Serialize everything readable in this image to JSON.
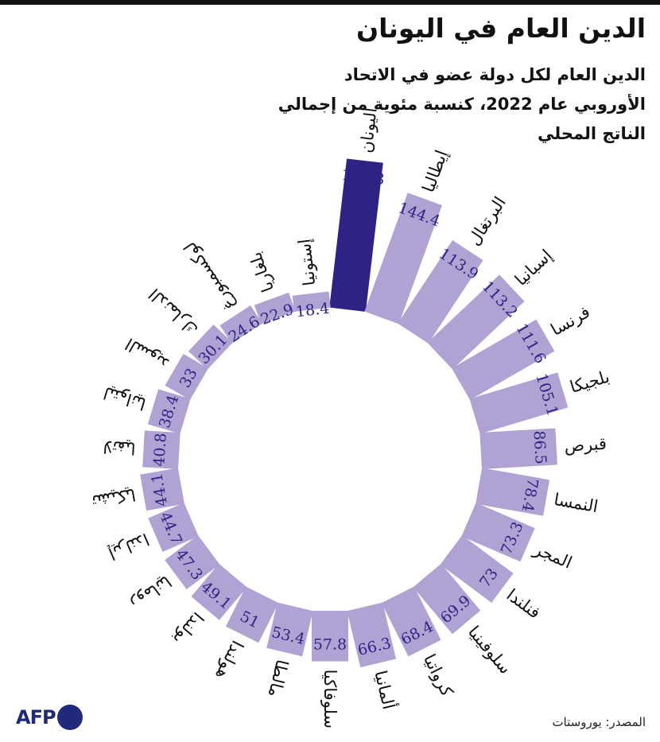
{
  "header": {
    "title": "الدين العام في اليونان",
    "subtitle": "الدين العام لكل دولة عضو في الاتحاد الأوروبي عام 2022، كنسبة مئوية من إجمالي الناتج المحلي"
  },
  "footer": {
    "source": "المصدر: يوروستات",
    "logo_text": "AFP"
  },
  "colors": {
    "highlight": "#2e2384",
    "bar": "#b0a2d2",
    "value_text": "#2e2384",
    "label_text": "#111111"
  },
  "chart_data": {
    "type": "bar",
    "layout": "radial",
    "highlight": "اليونان",
    "categories": [
      "اليونان",
      "إيطاليا",
      "البرتغال",
      "إسبانيا",
      "فرنسا",
      "بلجيكا",
      "قبرص",
      "النمسا",
      "المجر",
      "فنلندا",
      "سلوفينيا",
      "كرواتيا",
      "ألمانيا",
      "سلوفاكيا",
      "مالطا",
      "هولندا",
      "بولندا",
      "رومانيا",
      "إيرلندا",
      "تشيكيا",
      "لاتفيا",
      "ليتوانيا",
      "السويد",
      "الدنمارك",
      "لوكسمبورغ",
      "بلغاريا",
      "إستونيا"
    ],
    "values": [
      171.3,
      144.4,
      113.9,
      113.2,
      111.6,
      105.1,
      86.5,
      78.4,
      73.3,
      73,
      69.9,
      68.4,
      66.3,
      57.8,
      53.4,
      51,
      49.1,
      47.3,
      44.7,
      44.1,
      40.8,
      38.4,
      33,
      30.1,
      24.6,
      22.9,
      18.4
    ],
    "value_labels": [
      "171.3",
      "144.4",
      "113.9",
      "113.2",
      "111.6",
      "105.1",
      "86.5",
      "78.4",
      "73.3",
      "73",
      "69.9",
      "68.4",
      "66.3",
      "57.8",
      "53.4",
      "51",
      "49.1",
      "47.3",
      "44.7",
      "44.1",
      "40.8",
      "38.4",
      "33",
      "30.1",
      "24.6",
      "22.9",
      "18.4"
    ]
  }
}
